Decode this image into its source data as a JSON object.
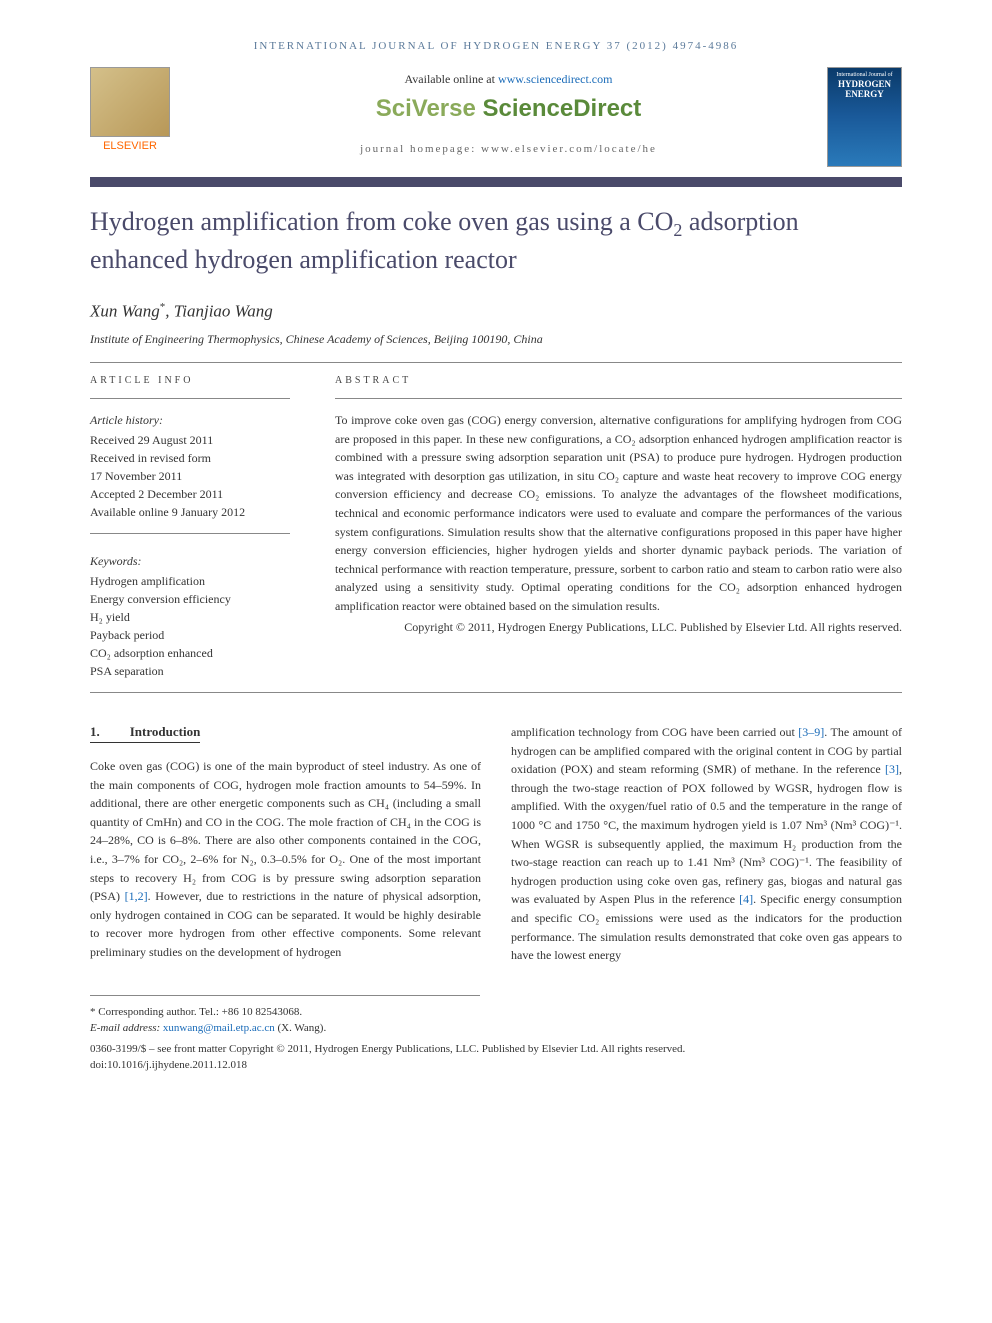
{
  "header": {
    "running_head": "INTERNATIONAL JOURNAL OF HYDROGEN ENERGY 37 (2012) 4974-4986",
    "available_prefix": "Available online at ",
    "available_link": "www.sciencedirect.com",
    "platform_logo_1": "SciVerse",
    "platform_logo_2": " ScienceDirect",
    "homepage_label": "journal homepage: www.elsevier.com/locate/he",
    "publisher_label": "ELSEVIER",
    "cover_journal_top": "International Journal of",
    "cover_journal_main": "HYDROGEN ENERGY"
  },
  "article": {
    "title_pre": "Hydrogen amplification from coke oven gas using a CO",
    "title_sub": "2",
    "title_post": " adsorption enhanced hydrogen amplification reactor",
    "author1": "Xun Wang",
    "author1_sup": "*",
    "author_sep": ", ",
    "author2": "Tianjiao Wang",
    "affiliation": "Institute of Engineering Thermophysics, Chinese Academy of Sciences, Beijing 100190, China"
  },
  "info": {
    "section_label": "ARTICLE INFO",
    "history_label": "Article history:",
    "received": "Received 29 August 2011",
    "revised_1": "Received in revised form",
    "revised_2": "17 November 2011",
    "accepted": "Accepted 2 December 2011",
    "online": "Available online 9 January 2012",
    "keywords_label": "Keywords:",
    "kw1": "Hydrogen amplification",
    "kw2": "Energy conversion efficiency",
    "kw3": "H₂ yield",
    "kw4": "Payback period",
    "kw5": "CO₂ adsorption enhanced",
    "kw6": "PSA separation"
  },
  "abstract": {
    "label": "ABSTRACT",
    "text": "To improve coke oven gas (COG) energy conversion, alternative configurations for amplifying hydrogen from COG are proposed in this paper. In these new configurations, a CO₂ adsorption enhanced hydrogen amplification reactor is combined with a pressure swing adsorption separation unit (PSA) to produce pure hydrogen. Hydrogen production was integrated with desorption gas utilization, in situ CO₂ capture and waste heat recovery to improve COG energy conversion efficiency and decrease CO₂ emissions. To analyze the advantages of the flowsheet modifications, technical and economic performance indicators were used to evaluate and compare the performances of the various system configurations. Simulation results show that the alternative configurations proposed in this paper have higher energy conversion efficiencies, higher hydrogen yields and shorter dynamic payback periods. The variation of technical performance with reaction temperature, pressure, sorbent to carbon ratio and steam to carbon ratio were also analyzed using a sensitivity study. Optimal operating conditions for the CO₂ adsorption enhanced hydrogen amplification reactor were obtained based on the simulation results.",
    "copyright": "Copyright © 2011, Hydrogen Energy Publications, LLC. Published by Elsevier Ltd. All rights reserved."
  },
  "body": {
    "section_num": "1.",
    "section_title": "Introduction",
    "col1": "Coke oven gas (COG) is one of the main byproduct of steel industry. As one of the main components of COG, hydrogen mole fraction amounts to 54–59%. In additional, there are other energetic components such as CH₄ (including a small quantity of CmHn) and CO in the COG. The mole fraction of CH₄ in the COG is 24–28%, CO is 6–8%. There are also other components contained in the COG, i.e., 3–7% for CO₂, 2–6% for N₂, 0.3–0.5% for O₂. One of the most important steps to recovery H₂ from COG is by pressure swing adsorption separation (PSA) ",
    "ref12": "[1,2]",
    "col1_post": ". However, due to restrictions in the nature of physical adsorption, only hydrogen contained in COG can be separated. It would be highly desirable to recover more hydrogen from other effective components. Some relevant preliminary studies on the development of hydrogen",
    "col2_pre": "amplification technology from COG have been carried out ",
    "ref39": "[3–9]",
    "col2_a": ". The amount of hydrogen can be amplified compared with the original content in COG by partial oxidation (POX) and steam reforming (SMR) of methane. In the reference ",
    "ref3": "[3]",
    "col2_b": ", through the two-stage reaction of POX followed by WGSR, hydrogen flow is amplified. With the oxygen/fuel ratio of 0.5 and the temperature in the range of 1000 °C and 1750 °C, the maximum hydrogen yield is 1.07 Nm³ (Nm³ COG)⁻¹. When WGSR is subsequently applied, the maximum H₂ production from the two-stage reaction can reach up to 1.41 Nm³ (Nm³ COG)⁻¹. The feasibility of hydrogen production using coke oven gas, refinery gas, biogas and natural gas was evaluated by Aspen Plus in the reference ",
    "ref4": "[4]",
    "col2_c": ". Specific energy consumption and specific CO₂ emissions were used as the indicators for the production performance. The simulation results demonstrated that coke oven gas appears to have the lowest energy"
  },
  "footer": {
    "corresponding": "* Corresponding author. Tel.: +86 10 82543068.",
    "email_label": "E-mail address: ",
    "email": "xunwang@mail.etp.ac.cn",
    "email_post": " (X. Wang).",
    "issn_line": "0360-3199/$ – see front matter Copyright © 2011, Hydrogen Energy Publications, LLC. Published by Elsevier Ltd. All rights reserved.",
    "doi": "doi:10.1016/j.ijhydene.2011.12.018"
  },
  "colors": {
    "title_bar": "#4a4a6a",
    "link_color": "#1a6bb8",
    "header_color": "#5b7a9a",
    "publisher_orange": "#ff6600"
  }
}
